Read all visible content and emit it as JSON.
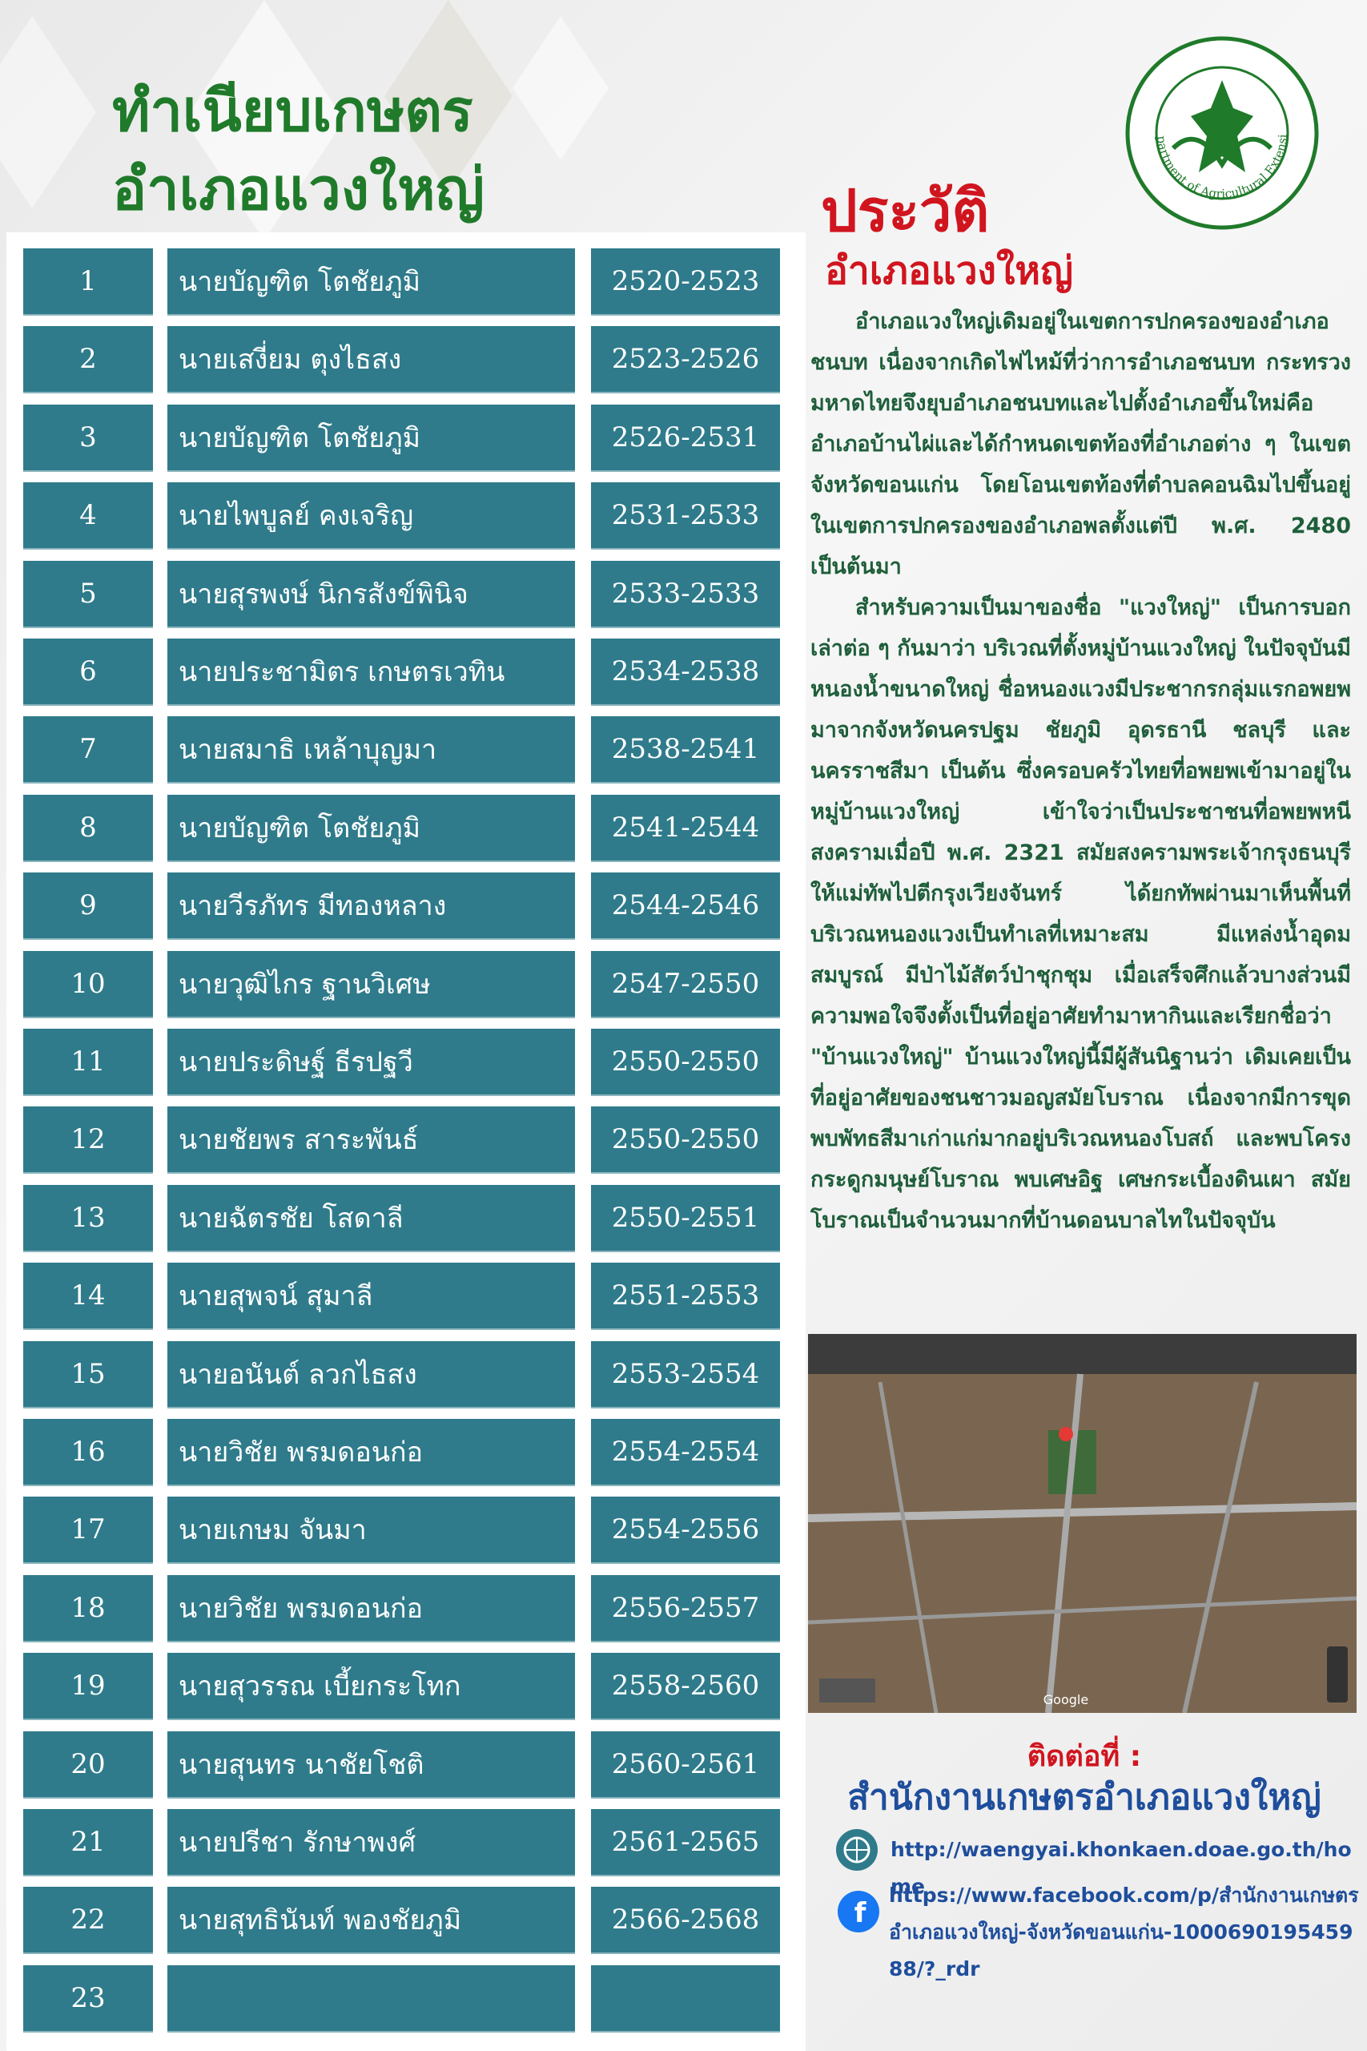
{
  "header": {
    "title_lines": [
      "ทำเนียบเกษตร",
      "อำเภอแวงใหญ่"
    ]
  },
  "logo": {
    "text": "Department of Agricultural Extension"
  },
  "table": {
    "rows": [
      [
        "1",
        "นายบัญฑิต  โตชัยภูมิ",
        "2520-2523"
      ],
      [
        "2",
        "นายเสงี่ยม  ตุงไธสง",
        "2523-2526"
      ],
      [
        "3",
        "นายบัญฑิต  โตชัยภูมิ",
        "2526-2531"
      ],
      [
        "4",
        "นายไพบูลย์  คงเจริญ",
        "2531-2533"
      ],
      [
        "5",
        "นายสุรพงษ์  นิกรสังข์พินิจ",
        "2533-2533"
      ],
      [
        "6",
        "นายประชามิตร  เกษตรเวทิน",
        "2534-2538"
      ],
      [
        "7",
        "นายสมาธิ  เหล้าบุญมา",
        "2538-2541"
      ],
      [
        "8",
        "นายบัญฑิต  โตชัยภูมิ",
        "2541-2544"
      ],
      [
        "9",
        "นายวีรภัทร  มีทองหลาง",
        "2544-2546"
      ],
      [
        "10",
        "นายวุฒิไกร  ฐานวิเศษ",
        "2547-2550"
      ],
      [
        "11",
        "นายประดิษฐ์  ธีรปฐวี",
        "2550-2550"
      ],
      [
        "12",
        "นายชัยพร  สาระพันธ์",
        "2550-2550"
      ],
      [
        "13",
        "นายฉัตรชัย  โสดาลี",
        "2550-2551"
      ],
      [
        "14",
        "นายสุพจน์  สุมาลี",
        "2551-2553"
      ],
      [
        "15",
        "นายอนันต์  ลวกไธสง",
        "2553-2554"
      ],
      [
        "16",
        "นายวิชัย  พรมดอนก่อ",
        "2554-2554"
      ],
      [
        "17",
        "นายเกษม  จันมา",
        "2554-2556"
      ],
      [
        "18",
        "นายวิชัย  พรมดอนก่อ",
        "2556-2557"
      ],
      [
        "19",
        "นายสุวรรณ  เบี้ยกระโทก",
        "2558-2560"
      ],
      [
        "20",
        "นายสุนทร  นาชัยโชติ",
        "2560-2561"
      ],
      [
        "21",
        "นายปรีชา  รักษาพงศ์",
        "2561-2565"
      ],
      [
        "22",
        "นายสุทธินันท์  พองชัยภูมิ",
        "2566-2568"
      ],
      [
        "23"
      ]
    ]
  },
  "history": {
    "title": "ประวัติ",
    "subtitle": "อำเภอแวงใหญ่",
    "paragraphs": [
      "อำเภอแวงใหญ่เดิมอยู่ในเขตการปกครองของอำเภอชนบท เนื่องจากเกิดไฟไหม้ที่ว่าการอำเภอชนบท กระทรวงมหาดไทยจึงยุบอำเภอชนบทและไปตั้งอำเภอขึ้นใหม่คืออำเภอบ้านไผ่และได้กำหนดเขตท้องที่อำเภอต่าง ๆ ในเขตจังหวัดขอนแก่น โดยโอนเขตท้องที่ตำบลคอนฉิมไปขึ้นอยู่ในเขตการปกครองของอำเภอพลตั้งแต่ปี พ.ศ. 2480 เป็นต้นมา",
      "สำหรับความเป็นมาของชื่อ \"แวงใหญ่\" เป็นการบอกเล่าต่อ ๆ กันมาว่า บริเวณที่ตั้งหมู่บ้านแวงใหญ่ ในปัจจุบันมีหนองน้ำขนาดใหญ่ ชื่อหนองแวงมีประชากรกลุ่มแรกอพยพมาจากจังหวัดนครปฐม ชัยภูมิ อุดรธานี ชลบุรี และนครราชสีมา เป็นต้น ซึ่งครอบครัวไทยที่อพยพเข้ามาอยู่ในหมู่บ้านแวงใหญ่ เข้าใจว่าเป็นประชาชนที่อพยพหนีสงครามเมื่อปี พ.ศ. 2321 สมัยสงครามพระเจ้ากรุงธนบุรีให้แม่ทัพไปตีกรุงเวียงจันทร์ ได้ยกทัพผ่านมาเห็นพื้นที่บริเวณหนองแวงเป็นทำเลที่เหมาะสม มีแหล่งน้ำอุดมสมบูรณ์ มีป่าไม้สัตว์ป่าชุกชุม เมื่อเสร็จศึกแล้วบางส่วนมีความพอใจจึงตั้งเป็นที่อยู่อาศัยทำมาหากินและเรียกชื่อว่า \"บ้านแวงใหญ่\" บ้านแวงใหญ่นี้มีผู้สันนิฐานว่า เดิมเคยเป็นที่อยู่อาศัยของชนชาวมอญสมัยโบราณ เนื่องจากมีการขุดพบพัทธสีมาเก่าแก่มากอยู่บริเวณหนองโบสถ์ และพบโครงกระดูกมนุษย์โบราณ พบเศษอิฐ เศษกระเบื้องดินเผา สมัยโบราณเป็นจำนวนมากที่บ้านดอนบาลไทในปัจจุบัน"
    ]
  },
  "map": {
    "attribution": "Google"
  },
  "contact": {
    "label": "ติดต่อที่ :",
    "office": "สำนักงานเกษตรอำเภอแวงใหญ่",
    "website": "http://waengyai.khonkaen.doae.go.th/home",
    "facebook": "https://www.facebook.com/p/สำนักงานเกษตรอำเภอแวงใหญ่-จังหวัดขอนแก่น-100069019545988/?_rdr"
  }
}
